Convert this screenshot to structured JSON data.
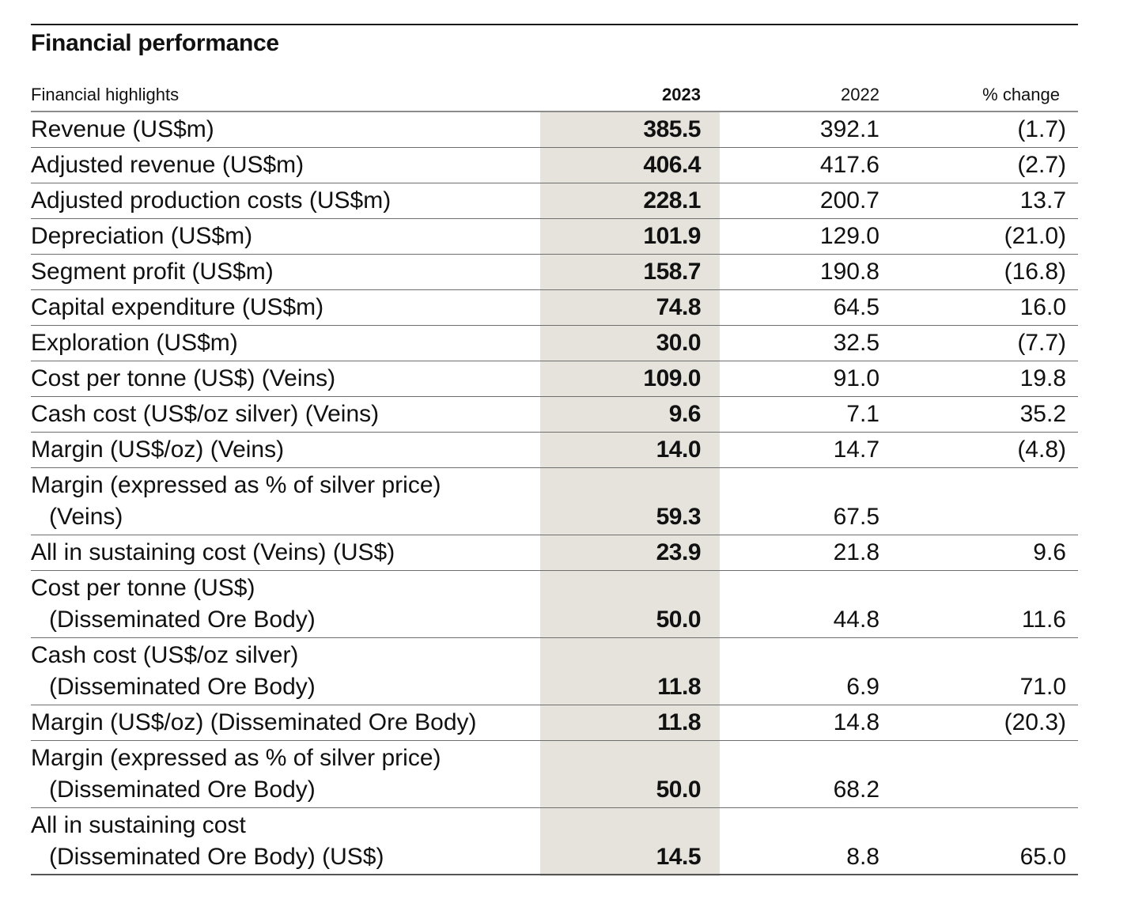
{
  "title": "Financial performance",
  "table": {
    "headers": {
      "label": "Financial highlights",
      "y2023": "2023",
      "y2022": "2022",
      "change": "% change"
    },
    "rows": [
      {
        "line1": "Revenue (US$m)",
        "line2": "",
        "y2023": "385.5",
        "y2022": "392.1",
        "change": "(1.7)"
      },
      {
        "line1": "Adjusted revenue (US$m)",
        "line2": "",
        "y2023": "406.4",
        "y2022": "417.6",
        "change": "(2.7)"
      },
      {
        "line1": "Adjusted production costs (US$m)",
        "line2": "",
        "y2023": "228.1",
        "y2022": "200.7",
        "change": "13.7"
      },
      {
        "line1": "Depreciation (US$m)",
        "line2": "",
        "y2023": "101.9",
        "y2022": "129.0",
        "change": "(21.0)"
      },
      {
        "line1": "Segment profit (US$m)",
        "line2": "",
        "y2023": "158.7",
        "y2022": "190.8",
        "change": "(16.8)"
      },
      {
        "line1": "Capital expenditure (US$m)",
        "line2": "",
        "y2023": "74.8",
        "y2022": "64.5",
        "change": "16.0"
      },
      {
        "line1": "Exploration (US$m)",
        "line2": "",
        "y2023": "30.0",
        "y2022": "32.5",
        "change": "(7.7)"
      },
      {
        "line1": "Cost per tonne (US$) (Veins)",
        "line2": "",
        "y2023": "109.0",
        "y2022": "91.0",
        "change": "19.8"
      },
      {
        "line1": "Cash cost (US$/oz silver) (Veins)",
        "line2": "",
        "y2023": "9.6",
        "y2022": "7.1",
        "change": "35.2"
      },
      {
        "line1": "Margin (US$/oz) (Veins)",
        "line2": "",
        "y2023": "14.0",
        "y2022": "14.7",
        "change": "(4.8)"
      },
      {
        "line1": "Margin (expressed as % of silver price)",
        "line2": "(Veins)",
        "y2023": "59.3",
        "y2022": "67.5",
        "change": ""
      },
      {
        "line1": "All in sustaining cost (Veins) (US$)",
        "line2": "",
        "y2023": "23.9",
        "y2022": "21.8",
        "change": "9.6"
      },
      {
        "line1": "Cost per tonne (US$)",
        "line2": "(Disseminated Ore Body)",
        "y2023": "50.0",
        "y2022": "44.8",
        "change": "11.6"
      },
      {
        "line1": "Cash cost (US$/oz silver)",
        "line2": "(Disseminated Ore Body)",
        "y2023": "11.8",
        "y2022": "6.9",
        "change": "71.0"
      },
      {
        "line1": "Margin (US$/oz) (Disseminated Ore Body)",
        "line2": "",
        "y2023": "11.8",
        "y2022": "14.8",
        "change": "(20.3)"
      },
      {
        "line1": "Margin (expressed as % of silver price)",
        "line2": "(Disseminated Ore Body)",
        "y2023": "50.0",
        "y2022": "68.2",
        "change": ""
      },
      {
        "line1": "All in sustaining cost",
        "line2": "(Disseminated Ore Body) (US$)",
        "y2023": "14.5",
        "y2022": "8.8",
        "change": "65.0"
      }
    ]
  }
}
